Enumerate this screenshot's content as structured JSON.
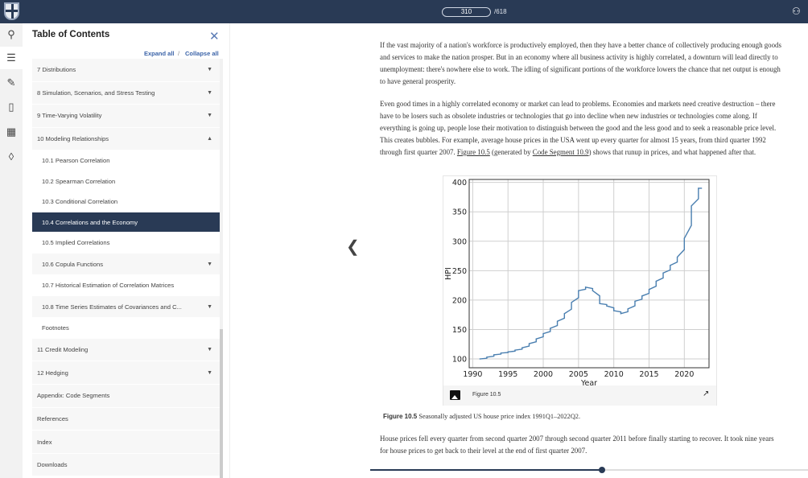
{
  "topbar": {
    "page_current": "310",
    "page_total": "/618",
    "user_icon": "users-icon"
  },
  "rail": {
    "icons": [
      "search-icon",
      "list-icon",
      "edit-icon",
      "book-icon",
      "apps-icon",
      "cards-icon"
    ]
  },
  "toc": {
    "title": "Table of Contents",
    "expand_all": "Expand all",
    "separator": "/",
    "collapse_all": "Collapse all",
    "items": [
      {
        "label": "7 Distributions",
        "kind": "ch",
        "chevron": "down"
      },
      {
        "label": "8 Simulation, Scenarios, and Stress Testing",
        "kind": "ch",
        "chevron": "down"
      },
      {
        "label": "9 Time-Varying Volatility",
        "kind": "ch",
        "chevron": "down"
      },
      {
        "label": "10 Modeling Relationships",
        "kind": "ch",
        "chevron": "up"
      },
      {
        "label": "10.1 Pearson Correlation",
        "kind": "sub"
      },
      {
        "label": "10.2 Spearman Correlation",
        "kind": "sub"
      },
      {
        "label": "10.3 Conditional Correlation",
        "kind": "sub"
      },
      {
        "label": "10.4 Correlations and the Economy",
        "kind": "sub",
        "active": true
      },
      {
        "label": "10.5 Implied Correlations",
        "kind": "sub"
      },
      {
        "label": "10.6 Copula Functions",
        "kind": "subch",
        "chevron": "down"
      },
      {
        "label": "10.7 Historical Estimation of Correlation Matrices",
        "kind": "sub"
      },
      {
        "label": "10.8 Time Series Estimates of Covariances and C...",
        "kind": "subch",
        "chevron": "down"
      },
      {
        "label": "Footnotes",
        "kind": "sub"
      },
      {
        "label": "11 Credit Modeling",
        "kind": "ch",
        "chevron": "down"
      },
      {
        "label": "12 Hedging",
        "kind": "ch",
        "chevron": "down"
      },
      {
        "label": "Appendix: Code Segments",
        "kind": "ch"
      },
      {
        "label": "References",
        "kind": "ch"
      },
      {
        "label": "Index",
        "kind": "ch"
      },
      {
        "label": "Downloads",
        "kind": "ch"
      }
    ]
  },
  "content": {
    "para1": "If the vast majority of a nation's workforce is productively employed, then they have a better chance of collectively producing enough goods and services to make the nation prosper. But in an economy where all business activity is highly correlated, a downturn will lead directly to unemployment: there's nowhere else to work. The idling of significant portions of the workforce lowers the chance that net output is enough to have general prosperity.",
    "para2_a": "Even good times in a highly correlated economy or market can lead to problems. Economies and markets need creative destruction – there have to be losers such as obsolete industries or technologies that go into decline when new industries or technologies come along. If everything is going up, people lose their motivation to distinguish between the good and the less good and to seek a reasonable price level. This creates bubbles. For example, average house prices in the USA went up every quarter for almost 15 years, from third quarter 1992 through first quarter 2007. ",
    "para2_link1": "Figure 10.5",
    "para2_b": " (generated by ",
    "para2_link2": "Code Segment 10.9",
    "para2_c": ") shows that runup in prices, and what happened after that.",
    "figure_label": "Figure 10.5",
    "caption_label": "Figure 10.5",
    "caption_text": " Seasonally adjusted US house price index 1991Q1–2022Q2.",
    "para3": "House prices fell every quarter from second quarter 2007 through second quarter 2011 before finally starting to recover. It took nine years for house prices to get back to their level at the end of first quarter 2007.",
    "progress": 0.53
  },
  "chart_data": {
    "type": "line",
    "xlabel": "Year",
    "ylabel": "HPI",
    "xlim": [
      1989.5,
      2023.5
    ],
    "ylim": [
      85,
      405
    ],
    "xticks": [
      1990,
      1995,
      2000,
      2005,
      2010,
      2015,
      2020
    ],
    "yticks": [
      100,
      150,
      200,
      250,
      300,
      350,
      400
    ],
    "grid": true,
    "color": "#4a7fb0",
    "x": [
      1991,
      1992,
      1993,
      1994,
      1995,
      1996,
      1997,
      1998,
      1999,
      2000,
      2001,
      2002,
      2003,
      2004,
      2005,
      2006,
      2007,
      2008,
      2009,
      2010,
      2011,
      2012,
      2013,
      2014,
      2015,
      2016,
      2017,
      2018,
      2019,
      2020,
      2021,
      2022
    ],
    "y": [
      100,
      103,
      107,
      110,
      112,
      115,
      119,
      126,
      134,
      143,
      152,
      164,
      177,
      196,
      216,
      222,
      216,
      194,
      190,
      182,
      177,
      185,
      198,
      207,
      218,
      232,
      246,
      259,
      273,
      305,
      360,
      390
    ]
  }
}
